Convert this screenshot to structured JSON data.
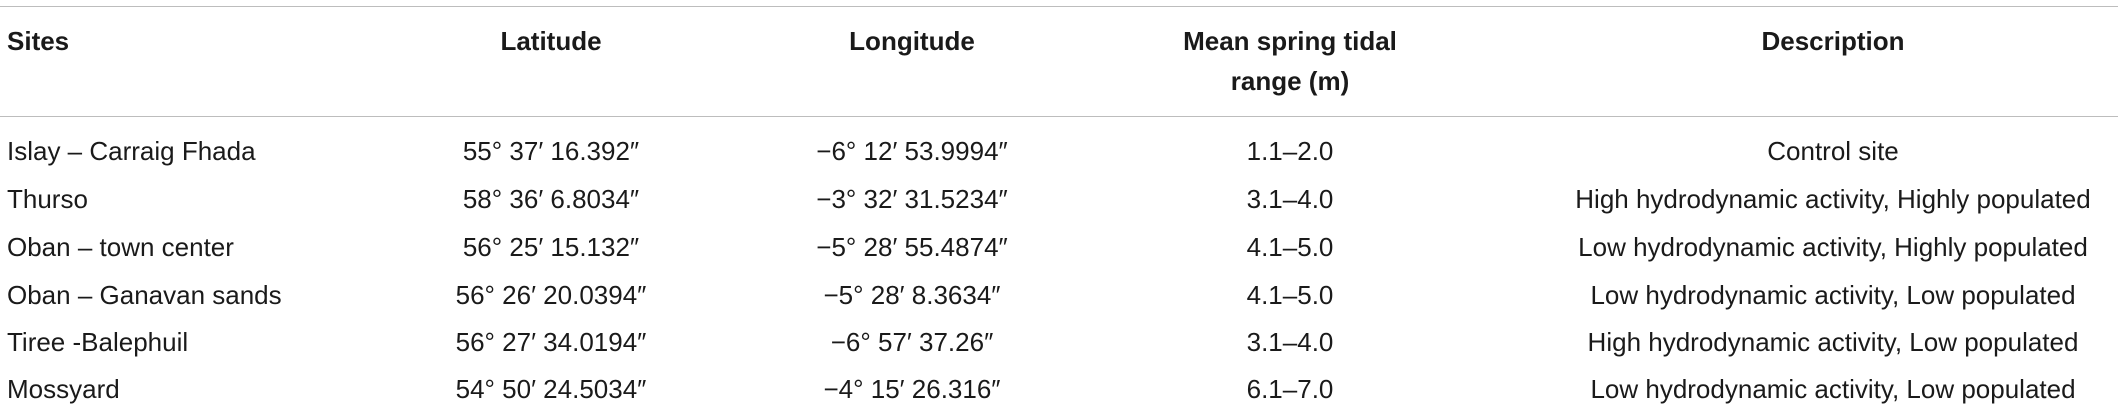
{
  "table": {
    "columns": [
      "Sites",
      "Latitude",
      "Longitude",
      "Mean spring tidal range (m)",
      "Description"
    ],
    "rows": [
      [
        "Islay – Carraig Fhada",
        "55° 37′ 16.392″",
        "−6° 12′ 53.9994″",
        "1.1–2.0",
        "Control site"
      ],
      [
        "Thurso",
        "58° 36′ 6.8034″",
        "−3° 32′ 31.5234″",
        "3.1–4.0",
        "High hydrodynamic activity, Highly populated"
      ],
      [
        "Oban – town center",
        "56° 25′ 15.132″",
        "−5° 28′ 55.4874″",
        "4.1–5.0",
        "Low hydrodynamic activity, Highly populated"
      ],
      [
        "Oban – Ganavan sands",
        "56° 26′ 20.0394″",
        "−5° 28′ 8.3634″",
        "4.1–5.0",
        "Low hydrodynamic activity, Low populated"
      ],
      [
        "Tiree -Balephuil",
        "56° 27′ 34.0194″",
        "−6° 57′ 37.26″",
        "3.1–4.0",
        "High hydrodynamic activity, Low populated"
      ],
      [
        "Mossyard",
        "54° 50′ 24.5034″",
        "−4° 15′ 26.316″",
        "6.1–7.0",
        "Low hydrodynamic activity, Low populated"
      ]
    ]
  }
}
